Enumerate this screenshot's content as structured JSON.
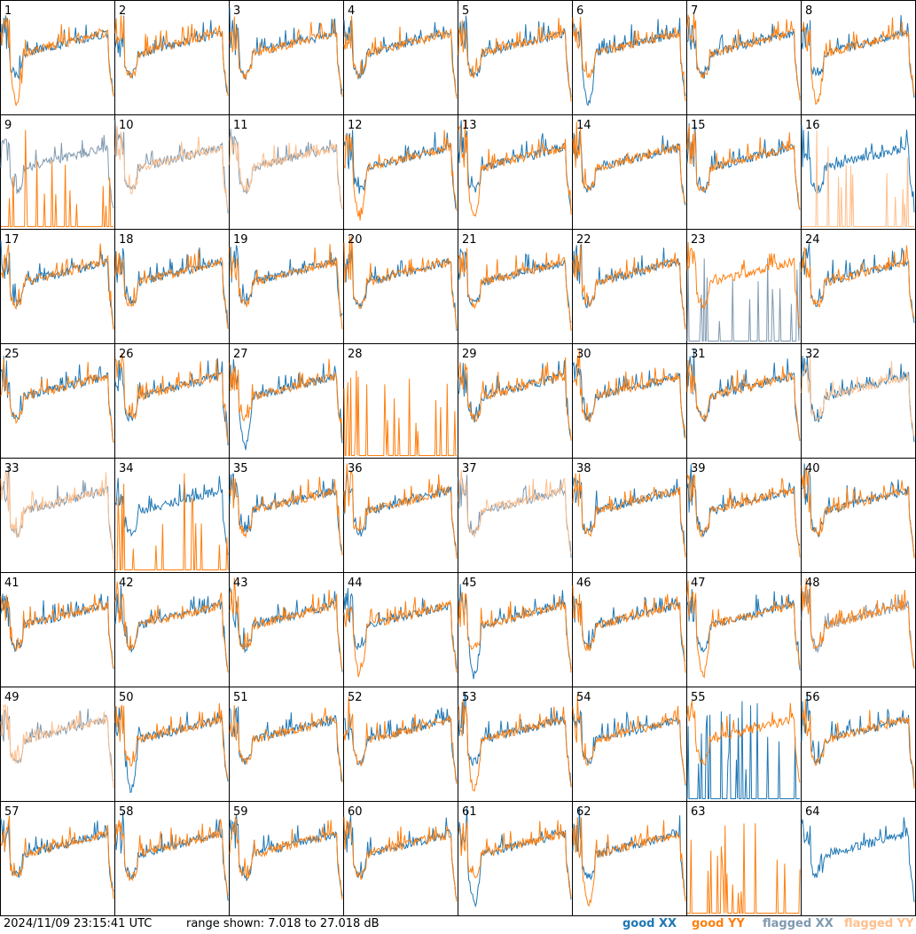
{
  "chart_data": {
    "type": "line",
    "grid": {
      "rows": 8,
      "cols": 8
    },
    "tiles": [
      "1",
      "2",
      "3",
      "4",
      "5",
      "6",
      "7",
      "8",
      "9",
      "10",
      "11",
      "12",
      "13",
      "14",
      "15",
      "16",
      "17",
      "18",
      "19",
      "20",
      "21",
      "22",
      "23",
      "24",
      "25",
      "26",
      "27",
      "28",
      "29",
      "30",
      "31",
      "32",
      "33",
      "34",
      "35",
      "36",
      "37",
      "38",
      "39",
      "40",
      "41",
      "42",
      "43",
      "44",
      "45",
      "46",
      "47",
      "48",
      "49",
      "50",
      "51",
      "52",
      "53",
      "54",
      "55",
      "56",
      "57",
      "58",
      "59",
      "60",
      "61",
      "62",
      "63",
      "64"
    ],
    "timestamp": "2024/11/09 23:15:41 UTC",
    "range_text": "range shown: 7.018 to 27.018 dB",
    "ylim": [
      7.018,
      27.018
    ],
    "legend": [
      {
        "label": "good XX",
        "color": "#1f77b4"
      },
      {
        "label": "good YY",
        "color": "#ff7f0e"
      },
      {
        "label": "flagged XX",
        "color": "#7f99b0"
      },
      {
        "label": "flagged YY",
        "color": "#ffbf8c"
      }
    ],
    "series_styles": {
      "xx": {
        "good": "#1f77b4",
        "flagged": "#7f99b0"
      },
      "yy": {
        "good": "#ff7f0e",
        "flagged": "#ffbf8c"
      }
    },
    "tile_status": {
      "flagged_xx": [
        "9",
        "23",
        "48",
        "49",
        "33",
        "37",
        "10",
        "11"
      ],
      "flagged_yy": [
        "10",
        "11",
        "16",
        "32",
        "33",
        "37",
        "49"
      ],
      "no_xx": [
        "28",
        "63"
      ],
      "no_yy": [
        "64"
      ]
    }
  }
}
